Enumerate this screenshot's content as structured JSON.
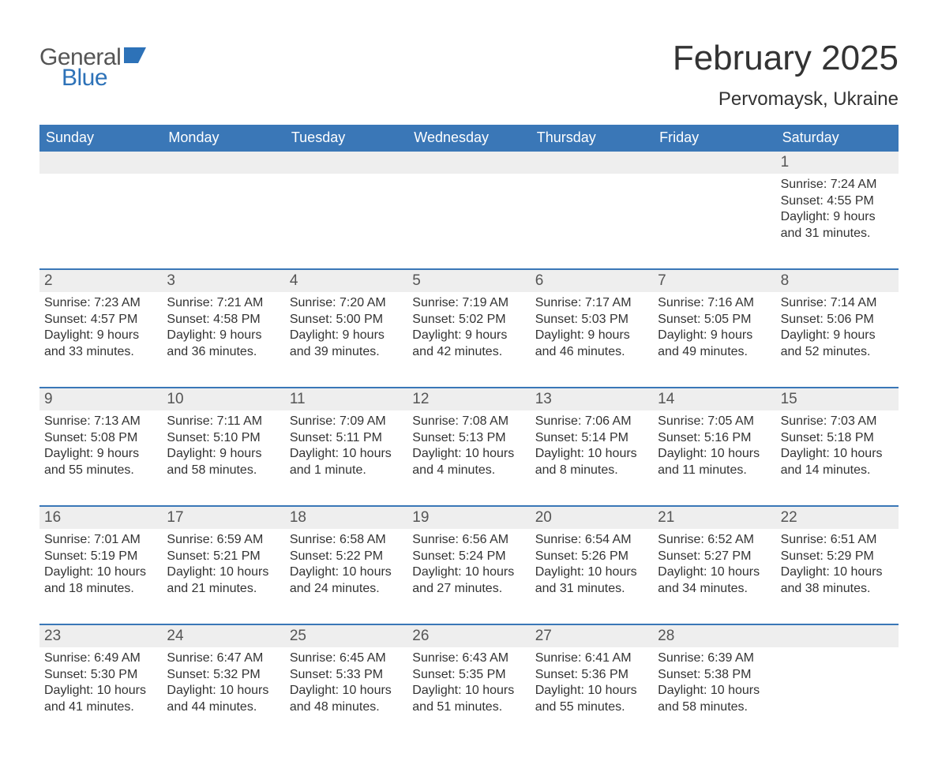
{
  "branding": {
    "logo_word1": "General",
    "logo_word2": "Blue",
    "logo_word1_color": "#555555",
    "logo_word2_color": "#2d72b8",
    "logo_mark_color": "#2d72b8"
  },
  "header": {
    "title": "February 2025",
    "location": "Pervomaysk, Ukraine"
  },
  "style": {
    "header_band_bg": "#3a77b7",
    "header_band_text": "#ffffff",
    "daynum_band_bg": "#eeeeee",
    "week_divider_color": "#3a77b7",
    "body_text_color": "#333333",
    "page_bg": "#ffffff",
    "title_fontsize": 44,
    "location_fontsize": 24,
    "weekday_fontsize": 18,
    "daynum_fontsize": 19,
    "detail_fontsize": 16
  },
  "weekdays": [
    "Sunday",
    "Monday",
    "Tuesday",
    "Wednesday",
    "Thursday",
    "Friday",
    "Saturday"
  ],
  "weeks": [
    [
      {
        "day": "",
        "sunrise": "",
        "sunset": "",
        "daylight": ""
      },
      {
        "day": "",
        "sunrise": "",
        "sunset": "",
        "daylight": ""
      },
      {
        "day": "",
        "sunrise": "",
        "sunset": "",
        "daylight": ""
      },
      {
        "day": "",
        "sunrise": "",
        "sunset": "",
        "daylight": ""
      },
      {
        "day": "",
        "sunrise": "",
        "sunset": "",
        "daylight": ""
      },
      {
        "day": "",
        "sunrise": "",
        "sunset": "",
        "daylight": ""
      },
      {
        "day": "1",
        "sunrise": "Sunrise: 7:24 AM",
        "sunset": "Sunset: 4:55 PM",
        "daylight": "Daylight: 9 hours and 31 minutes."
      }
    ],
    [
      {
        "day": "2",
        "sunrise": "Sunrise: 7:23 AM",
        "sunset": "Sunset: 4:57 PM",
        "daylight": "Daylight: 9 hours and 33 minutes."
      },
      {
        "day": "3",
        "sunrise": "Sunrise: 7:21 AM",
        "sunset": "Sunset: 4:58 PM",
        "daylight": "Daylight: 9 hours and 36 minutes."
      },
      {
        "day": "4",
        "sunrise": "Sunrise: 7:20 AM",
        "sunset": "Sunset: 5:00 PM",
        "daylight": "Daylight: 9 hours and 39 minutes."
      },
      {
        "day": "5",
        "sunrise": "Sunrise: 7:19 AM",
        "sunset": "Sunset: 5:02 PM",
        "daylight": "Daylight: 9 hours and 42 minutes."
      },
      {
        "day": "6",
        "sunrise": "Sunrise: 7:17 AM",
        "sunset": "Sunset: 5:03 PM",
        "daylight": "Daylight: 9 hours and 46 minutes."
      },
      {
        "day": "7",
        "sunrise": "Sunrise: 7:16 AM",
        "sunset": "Sunset: 5:05 PM",
        "daylight": "Daylight: 9 hours and 49 minutes."
      },
      {
        "day": "8",
        "sunrise": "Sunrise: 7:14 AM",
        "sunset": "Sunset: 5:06 PM",
        "daylight": "Daylight: 9 hours and 52 minutes."
      }
    ],
    [
      {
        "day": "9",
        "sunrise": "Sunrise: 7:13 AM",
        "sunset": "Sunset: 5:08 PM",
        "daylight": "Daylight: 9 hours and 55 minutes."
      },
      {
        "day": "10",
        "sunrise": "Sunrise: 7:11 AM",
        "sunset": "Sunset: 5:10 PM",
        "daylight": "Daylight: 9 hours and 58 minutes."
      },
      {
        "day": "11",
        "sunrise": "Sunrise: 7:09 AM",
        "sunset": "Sunset: 5:11 PM",
        "daylight": "Daylight: 10 hours and 1 minute."
      },
      {
        "day": "12",
        "sunrise": "Sunrise: 7:08 AM",
        "sunset": "Sunset: 5:13 PM",
        "daylight": "Daylight: 10 hours and 4 minutes."
      },
      {
        "day": "13",
        "sunrise": "Sunrise: 7:06 AM",
        "sunset": "Sunset: 5:14 PM",
        "daylight": "Daylight: 10 hours and 8 minutes."
      },
      {
        "day": "14",
        "sunrise": "Sunrise: 7:05 AM",
        "sunset": "Sunset: 5:16 PM",
        "daylight": "Daylight: 10 hours and 11 minutes."
      },
      {
        "day": "15",
        "sunrise": "Sunrise: 7:03 AM",
        "sunset": "Sunset: 5:18 PM",
        "daylight": "Daylight: 10 hours and 14 minutes."
      }
    ],
    [
      {
        "day": "16",
        "sunrise": "Sunrise: 7:01 AM",
        "sunset": "Sunset: 5:19 PM",
        "daylight": "Daylight: 10 hours and 18 minutes."
      },
      {
        "day": "17",
        "sunrise": "Sunrise: 6:59 AM",
        "sunset": "Sunset: 5:21 PM",
        "daylight": "Daylight: 10 hours and 21 minutes."
      },
      {
        "day": "18",
        "sunrise": "Sunrise: 6:58 AM",
        "sunset": "Sunset: 5:22 PM",
        "daylight": "Daylight: 10 hours and 24 minutes."
      },
      {
        "day": "19",
        "sunrise": "Sunrise: 6:56 AM",
        "sunset": "Sunset: 5:24 PM",
        "daylight": "Daylight: 10 hours and 27 minutes."
      },
      {
        "day": "20",
        "sunrise": "Sunrise: 6:54 AM",
        "sunset": "Sunset: 5:26 PM",
        "daylight": "Daylight: 10 hours and 31 minutes."
      },
      {
        "day": "21",
        "sunrise": "Sunrise: 6:52 AM",
        "sunset": "Sunset: 5:27 PM",
        "daylight": "Daylight: 10 hours and 34 minutes."
      },
      {
        "day": "22",
        "sunrise": "Sunrise: 6:51 AM",
        "sunset": "Sunset: 5:29 PM",
        "daylight": "Daylight: 10 hours and 38 minutes."
      }
    ],
    [
      {
        "day": "23",
        "sunrise": "Sunrise: 6:49 AM",
        "sunset": "Sunset: 5:30 PM",
        "daylight": "Daylight: 10 hours and 41 minutes."
      },
      {
        "day": "24",
        "sunrise": "Sunrise: 6:47 AM",
        "sunset": "Sunset: 5:32 PM",
        "daylight": "Daylight: 10 hours and 44 minutes."
      },
      {
        "day": "25",
        "sunrise": "Sunrise: 6:45 AM",
        "sunset": "Sunset: 5:33 PM",
        "daylight": "Daylight: 10 hours and 48 minutes."
      },
      {
        "day": "26",
        "sunrise": "Sunrise: 6:43 AM",
        "sunset": "Sunset: 5:35 PM",
        "daylight": "Daylight: 10 hours and 51 minutes."
      },
      {
        "day": "27",
        "sunrise": "Sunrise: 6:41 AM",
        "sunset": "Sunset: 5:36 PM",
        "daylight": "Daylight: 10 hours and 55 minutes."
      },
      {
        "day": "28",
        "sunrise": "Sunrise: 6:39 AM",
        "sunset": "Sunset: 5:38 PM",
        "daylight": "Daylight: 10 hours and 58 minutes."
      },
      {
        "day": "",
        "sunrise": "",
        "sunset": "",
        "daylight": ""
      }
    ]
  ]
}
